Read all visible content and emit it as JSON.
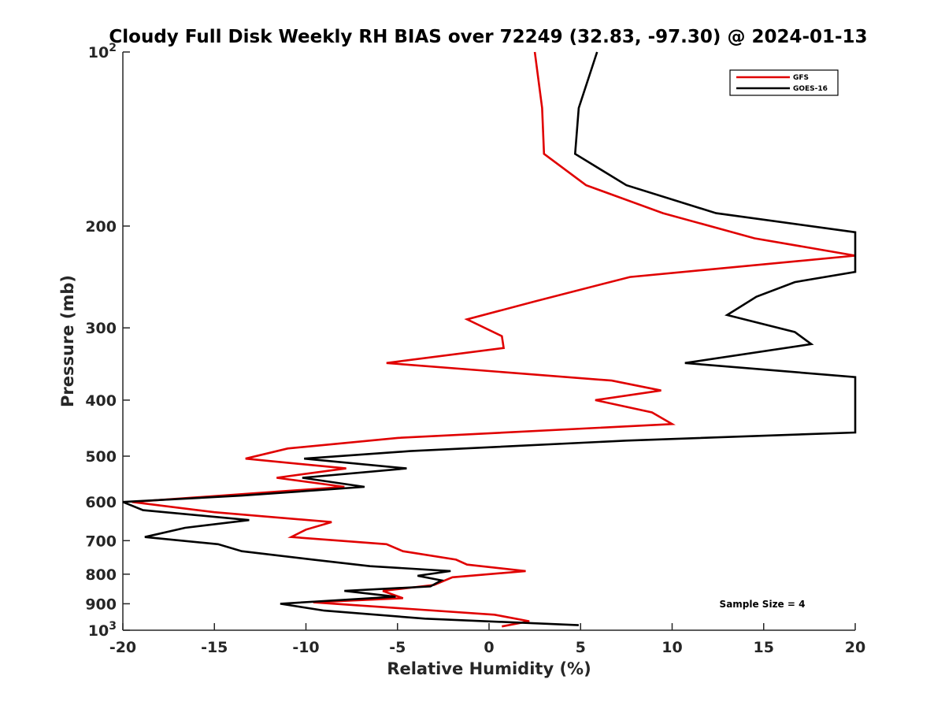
{
  "chart_data": {
    "type": "line",
    "title": "Cloudy Full Disk Weekly RH BIAS over 72249 (32.83, -97.30) @ 2024-01-13",
    "xlabel": "Relative Humidity (%)",
    "ylabel": "Pressure (mb)",
    "xlim": [
      -20,
      20
    ],
    "ylim": [
      100,
      1000
    ],
    "y_scale": "log",
    "y_reversed": true,
    "grid": false,
    "legend_position": "top-right",
    "x_ticks": [
      -20,
      -15,
      -10,
      -5,
      0,
      5,
      10,
      15,
      20
    ],
    "x_tick_labels": [
      "-20",
      "-15",
      "-10",
      "-5",
      "0",
      "5",
      "10",
      "15",
      "20"
    ],
    "y_ticks": [
      {
        "value": 100,
        "base": "10",
        "exp": "2"
      },
      {
        "value": 200,
        "label": "200"
      },
      {
        "value": 300,
        "label": "300"
      },
      {
        "value": 400,
        "label": "400"
      },
      {
        "value": 500,
        "label": "500"
      },
      {
        "value": 600,
        "label": "600"
      },
      {
        "value": 700,
        "label": "700"
      },
      {
        "value": 800,
        "label": "800"
      },
      {
        "value": 900,
        "label": "900"
      },
      {
        "value": 1000,
        "base": "10",
        "exp": "3"
      }
    ],
    "annotation": "Sample Size = 4",
    "series": [
      {
        "name": "GFS",
        "color": "#e00000",
        "points": [
          [
            2.5,
            100
          ],
          [
            2.9,
            125
          ],
          [
            3.0,
            150
          ],
          [
            5.3,
            170
          ],
          [
            9.5,
            190
          ],
          [
            14.5,
            210
          ],
          [
            20.0,
            225
          ],
          [
            7.7,
            245
          ],
          [
            2.5,
            270
          ],
          [
            -1.2,
            290
          ],
          [
            0.7,
            310
          ],
          [
            0.8,
            325
          ],
          [
            -5.6,
            345
          ],
          [
            6.7,
            370
          ],
          [
            9.4,
            385
          ],
          [
            5.8,
            400
          ],
          [
            8.9,
            420
          ],
          [
            10.0,
            440
          ],
          [
            -5.0,
            465
          ],
          [
            -11.0,
            485
          ],
          [
            -13.3,
            505
          ],
          [
            -7.8,
            525
          ],
          [
            -11.6,
            545
          ],
          [
            -7.9,
            565
          ],
          [
            -19.5,
            600
          ],
          [
            -15.0,
            625
          ],
          [
            -8.6,
            650
          ],
          [
            -10.0,
            670
          ],
          [
            -10.8,
            690
          ],
          [
            -5.6,
            710
          ],
          [
            -4.7,
            730
          ],
          [
            -1.8,
            755
          ],
          [
            -1.2,
            770
          ],
          [
            2.0,
            790
          ],
          [
            -2.0,
            810
          ],
          [
            -3.0,
            835
          ],
          [
            -5.8,
            855
          ],
          [
            -4.7,
            880
          ],
          [
            -9.6,
            895
          ],
          [
            0.3,
            940
          ],
          [
            2.2,
            965
          ],
          [
            0.7,
            985
          ]
        ]
      },
      {
        "name": "GOES-16",
        "color": "#000000",
        "points": [
          [
            5.9,
            100
          ],
          [
            4.9,
            125
          ],
          [
            4.7,
            150
          ],
          [
            7.5,
            170
          ],
          [
            12.4,
            190
          ],
          [
            20.0,
            205
          ],
          [
            20.0,
            240
          ],
          [
            16.7,
            250
          ],
          [
            14.6,
            265
          ],
          [
            13.0,
            285
          ],
          [
            16.7,
            305
          ],
          [
            17.6,
            320
          ],
          [
            10.7,
            345
          ],
          [
            20.0,
            365
          ],
          [
            20.0,
            455
          ],
          [
            7.5,
            470
          ],
          [
            -4.3,
            490
          ],
          [
            -10.1,
            505
          ],
          [
            -4.5,
            525
          ],
          [
            -10.2,
            545
          ],
          [
            -6.8,
            565
          ],
          [
            -13.5,
            585
          ],
          [
            -20.0,
            600
          ],
          [
            -18.9,
            620
          ],
          [
            -13.1,
            645
          ],
          [
            -16.6,
            665
          ],
          [
            -18.8,
            690
          ],
          [
            -14.8,
            710
          ],
          [
            -13.5,
            730
          ],
          [
            -9.6,
            755
          ],
          [
            -6.5,
            775
          ],
          [
            -2.1,
            790
          ],
          [
            -3.9,
            805
          ],
          [
            -2.6,
            820
          ],
          [
            -3.2,
            840
          ],
          [
            -7.9,
            855
          ],
          [
            -5.1,
            875
          ],
          [
            -11.4,
            900
          ],
          [
            -9.0,
            925
          ],
          [
            -3.5,
            955
          ],
          [
            4.9,
            980
          ]
        ]
      }
    ]
  }
}
